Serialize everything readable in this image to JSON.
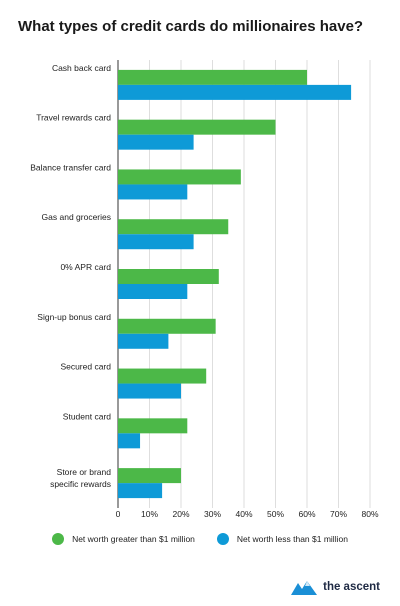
{
  "title": "What types of credit cards do millionaires have?",
  "brand": {
    "logo_text": "the ascent"
  },
  "chart_data": {
    "type": "bar",
    "orientation": "horizontal",
    "categories": [
      "Cash back card",
      "Travel rewards card",
      "Balance transfer card",
      "Gas and groceries",
      "0% APR card",
      "Sign-up bonus card",
      "Secured card",
      "Student card",
      "Store or brand specific rewards"
    ],
    "series": [
      {
        "name": "Net worth greater than $1 million",
        "color": "#4cb848",
        "values": [
          60,
          50,
          39,
          35,
          32,
          31,
          28,
          22,
          20
        ]
      },
      {
        "name": "Net worth less than $1 million",
        "color": "#0e9ad7",
        "values": [
          74,
          24,
          22,
          24,
          22,
          16,
          20,
          7,
          14
        ]
      }
    ],
    "xlim": [
      0,
      80
    ],
    "x_ticks": [
      "0",
      "10%",
      "20%",
      "30%",
      "40%",
      "50%",
      "60%",
      "70%",
      "80%"
    ],
    "grid": true,
    "legend_position": "bottom"
  }
}
